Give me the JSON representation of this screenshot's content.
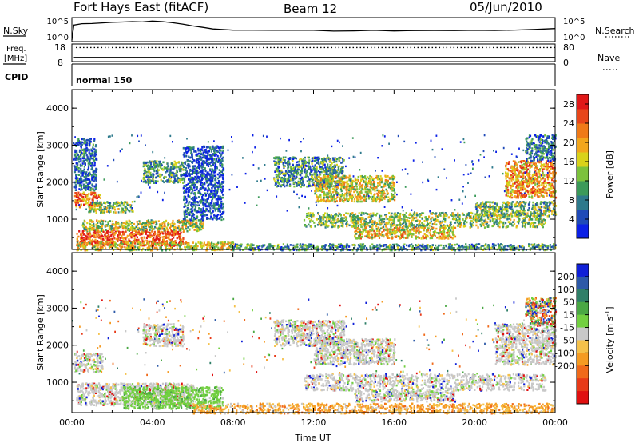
{
  "header": {
    "station": "Fort Hays East (fitACF)",
    "beam": "Beam 12",
    "date": "05/Jun/2010"
  },
  "summary_panels": {
    "nsky_label": "N.Sky",
    "nsearch_label": "N.Search",
    "noise_ticks_left": [
      "10^5",
      "10^0"
    ],
    "noise_ticks_right": [
      "10^5",
      "10^0"
    ],
    "freq_label": "Freq.",
    "freq_unit": "[MHz]",
    "freq_ticks": [
      "18",
      "8"
    ],
    "nave_label": "Nave",
    "nave_ticks": [
      "80",
      "0"
    ],
    "cpid_label": "CPID",
    "cpid_value": "normal 150"
  },
  "chart_data": [
    {
      "type": "line",
      "name": "noise-sky",
      "x_hours": [
        0,
        0.1,
        0.5,
        1,
        1.5,
        2,
        2.5,
        3,
        3.5,
        4,
        4.5,
        5,
        5.5,
        6,
        6.5,
        7,
        7.5,
        8,
        9,
        10,
        11,
        12,
        13,
        14,
        15,
        16,
        17,
        18,
        19,
        20,
        21,
        22,
        23,
        24
      ],
      "log10_values": [
        0,
        3.6,
        3.9,
        4.0,
        4.1,
        4.2,
        4.3,
        4.4,
        4.4,
        4.5,
        4.4,
        4.1,
        3.8,
        3.4,
        3.0,
        2.7,
        2.5,
        2.4,
        2.4,
        2.3,
        2.3,
        2.3,
        2.2,
        2.2,
        2.3,
        2.2,
        2.3,
        2.3,
        2.2,
        2.3,
        2.3,
        2.4,
        2.5,
        2.8
      ],
      "ylim_log10": [
        0,
        5
      ]
    },
    {
      "type": "line",
      "name": "frequency-nave",
      "freq_mhz": 10.5,
      "nave": 67,
      "freq_ylim": [
        8,
        18
      ],
      "nave_ylim": [
        0,
        80
      ]
    },
    {
      "type": "heatmap",
      "name": "power",
      "xlabel": "Time UT",
      "ylabel": "Slant Range [km]",
      "x_ticks": [
        "00:00",
        "04:00",
        "08:00",
        "12:00",
        "16:00",
        "20:00",
        "00:00"
      ],
      "xlim_hours": [
        0,
        24
      ],
      "y_ticks": [
        1000,
        2000,
        3000,
        4000
      ],
      "ylim_km": [
        180,
        4500
      ],
      "colorbar": {
        "label": "Power [dB]",
        "ticks": [
          4,
          8,
          12,
          16,
          20,
          24,
          28
        ],
        "range": [
          0,
          30
        ],
        "colors": [
          "#0b20e6",
          "#1f4ab8",
          "#2e7a8c",
          "#3c9a5a",
          "#7cc23c",
          "#d9d21a",
          "#f2a61c",
          "#f07a18",
          "#e8461a",
          "#e01818"
        ]
      },
      "regions": [
        {
          "t0": 0.1,
          "t1": 1.2,
          "r0": 1800,
          "r1": 3200,
          "level": 0.2
        },
        {
          "t0": 0.1,
          "t1": 1.4,
          "r0": 1350,
          "r1": 1750,
          "level": 0.75
        },
        {
          "t0": 0.8,
          "t1": 3.0,
          "r0": 1200,
          "r1": 1500,
          "level": 0.45
        },
        {
          "t0": 0.5,
          "t1": 6.5,
          "r0": 700,
          "r1": 1000,
          "level": 0.5
        },
        {
          "t0": 0.2,
          "t1": 5.5,
          "r0": 300,
          "r1": 700,
          "level": 0.85
        },
        {
          "t0": 0.2,
          "t1": 8.0,
          "r0": 180,
          "r1": 400,
          "level": 0.55
        },
        {
          "t0": 3.5,
          "t1": 5.5,
          "r0": 2000,
          "r1": 2600,
          "level": 0.35
        },
        {
          "t0": 5.5,
          "t1": 7.5,
          "r0": 1000,
          "r1": 3000,
          "level": 0.15
        },
        {
          "t0": 8.0,
          "t1": 24,
          "r0": 180,
          "r1": 350,
          "level": 0.3
        },
        {
          "t0": 10.0,
          "t1": 13.5,
          "r0": 1900,
          "r1": 2700,
          "level": 0.3
        },
        {
          "t0": 12.0,
          "t1": 16.0,
          "r0": 1500,
          "r1": 2200,
          "level": 0.55
        },
        {
          "t0": 11.5,
          "t1": 23.5,
          "r0": 800,
          "r1": 1200,
          "level": 0.45
        },
        {
          "t0": 14.0,
          "t1": 19.0,
          "r0": 500,
          "r1": 800,
          "level": 0.6
        },
        {
          "t0": 20.0,
          "t1": 24,
          "r0": 1100,
          "r1": 1500,
          "level": 0.4
        },
        {
          "t0": 21.5,
          "t1": 24,
          "r0": 1600,
          "r1": 2600,
          "level": 0.7
        },
        {
          "t0": 22.5,
          "t1": 24,
          "r0": 2600,
          "r1": 3300,
          "level": 0.25
        }
      ]
    },
    {
      "type": "heatmap",
      "name": "velocity",
      "xlabel": "Time UT",
      "ylabel": "Slant Range [km]",
      "x_ticks": [
        "00:00",
        "04:00",
        "08:00",
        "12:00",
        "16:00",
        "20:00",
        "00:00"
      ],
      "xlim_hours": [
        0,
        24
      ],
      "y_ticks": [
        1000,
        2000,
        3000,
        4000
      ],
      "ylim_km": [
        180,
        4500
      ],
      "colorbar": {
        "label": "Velocity [m s^-1]",
        "label_parts": [
          "Velocity [m s",
          "-1",
          "]"
        ],
        "ticks": [
          200,
          100,
          50,
          15,
          -15,
          -50,
          -100,
          -200
        ],
        "colors": [
          "#1020d8",
          "#2d5aa8",
          "#2f7f68",
          "#4aa844",
          "#72d040",
          "#c8c8c8",
          "#f5c14a",
          "#f59b22",
          "#f06a1a",
          "#e83a18",
          "#e01010"
        ]
      },
      "regions": [
        {
          "t0": 0.1,
          "t1": 1.5,
          "r0": 1300,
          "r1": 1800,
          "kind": "gray"
        },
        {
          "t0": 0.2,
          "t1": 6.0,
          "r0": 400,
          "r1": 1000,
          "kind": "gray"
        },
        {
          "t0": 2.5,
          "t1": 7.5,
          "r0": 300,
          "r1": 900,
          "kind": "green"
        },
        {
          "t0": 3.5,
          "t1": 5.5,
          "r0": 2000,
          "r1": 2600,
          "kind": "gray"
        },
        {
          "t0": 6.0,
          "t1": 24,
          "r0": 180,
          "r1": 450,
          "kind": "orange"
        },
        {
          "t0": 10.0,
          "t1": 13.5,
          "r0": 2000,
          "r1": 2700,
          "kind": "gray"
        },
        {
          "t0": 12.0,
          "t1": 16.0,
          "r0": 1500,
          "r1": 2200,
          "kind": "gray"
        },
        {
          "t0": 11.5,
          "t1": 23.5,
          "r0": 800,
          "r1": 1250,
          "kind": "gray"
        },
        {
          "t0": 14.0,
          "t1": 19.0,
          "r0": 500,
          "r1": 800,
          "kind": "gray"
        },
        {
          "t0": 21.0,
          "t1": 24,
          "r0": 1500,
          "r1": 2600,
          "kind": "gray"
        },
        {
          "t0": 22.5,
          "t1": 24,
          "r0": 2600,
          "r1": 3300,
          "kind": "mixed"
        }
      ]
    }
  ]
}
